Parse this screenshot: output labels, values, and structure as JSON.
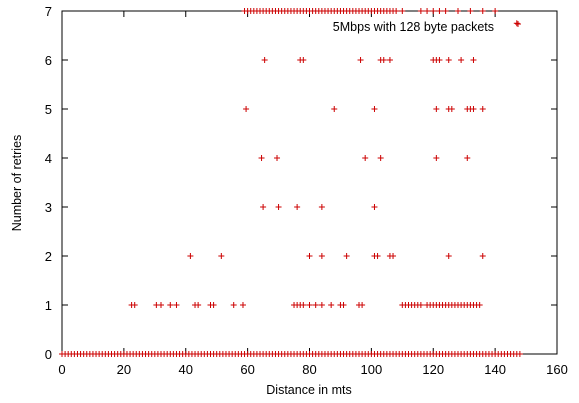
{
  "chart_data": {
    "type": "scatter",
    "xlabel": "Distance in mts",
    "ylabel": "Number of retries",
    "xlim": [
      0,
      160
    ],
    "ylim": [
      0,
      7
    ],
    "xticks": [
      0,
      20,
      40,
      60,
      80,
      100,
      120,
      140,
      160
    ],
    "yticks": [
      0,
      1,
      2,
      3,
      4,
      5,
      6,
      7
    ],
    "grid": false,
    "legend_position": "top-right",
    "marker": "plus",
    "series": [
      {
        "name": "5Mbps with 128 byte packets",
        "color": "#cc0000",
        "points": [
          [
            0,
            0
          ],
          [
            1,
            0
          ],
          [
            2,
            0
          ],
          [
            3,
            0
          ],
          [
            4,
            0
          ],
          [
            5,
            0
          ],
          [
            6,
            0
          ],
          [
            7,
            0
          ],
          [
            8,
            0
          ],
          [
            9,
            0
          ],
          [
            10,
            0
          ],
          [
            11,
            0
          ],
          [
            12,
            0
          ],
          [
            13,
            0
          ],
          [
            14,
            0
          ],
          [
            15,
            0
          ],
          [
            16,
            0
          ],
          [
            17,
            0
          ],
          [
            18,
            0
          ],
          [
            19,
            0
          ],
          [
            20,
            0
          ],
          [
            21,
            0
          ],
          [
            22,
            0
          ],
          [
            23,
            0
          ],
          [
            24,
            0
          ],
          [
            25,
            0
          ],
          [
            26,
            0
          ],
          [
            27,
            0
          ],
          [
            28,
            0
          ],
          [
            29,
            0
          ],
          [
            30,
            0
          ],
          [
            31,
            0
          ],
          [
            32,
            0
          ],
          [
            33,
            0
          ],
          [
            34,
            0
          ],
          [
            35,
            0
          ],
          [
            36,
            0
          ],
          [
            37,
            0
          ],
          [
            38,
            0
          ],
          [
            39,
            0
          ],
          [
            40,
            0
          ],
          [
            41,
            0
          ],
          [
            42,
            0
          ],
          [
            43,
            0
          ],
          [
            44,
            0
          ],
          [
            45,
            0
          ],
          [
            46,
            0
          ],
          [
            47,
            0
          ],
          [
            48,
            0
          ],
          [
            49,
            0
          ],
          [
            50,
            0
          ],
          [
            51,
            0
          ],
          [
            52,
            0
          ],
          [
            53,
            0
          ],
          [
            54,
            0
          ],
          [
            55,
            0
          ],
          [
            56,
            0
          ],
          [
            57,
            0
          ],
          [
            58,
            0
          ],
          [
            59,
            0
          ],
          [
            60,
            0
          ],
          [
            61,
            0
          ],
          [
            62,
            0
          ],
          [
            63,
            0
          ],
          [
            64,
            0
          ],
          [
            65,
            0
          ],
          [
            66,
            0
          ],
          [
            67,
            0
          ],
          [
            68,
            0
          ],
          [
            69,
            0
          ],
          [
            70,
            0
          ],
          [
            71,
            0
          ],
          [
            72,
            0
          ],
          [
            73,
            0
          ],
          [
            74,
            0
          ],
          [
            75,
            0
          ],
          [
            76,
            0
          ],
          [
            77,
            0
          ],
          [
            78,
            0
          ],
          [
            79,
            0
          ],
          [
            80,
            0
          ],
          [
            81,
            0
          ],
          [
            82,
            0
          ],
          [
            83,
            0
          ],
          [
            84,
            0
          ],
          [
            85,
            0
          ],
          [
            86,
            0
          ],
          [
            87,
            0
          ],
          [
            88,
            0
          ],
          [
            89,
            0
          ],
          [
            90,
            0
          ],
          [
            91,
            0
          ],
          [
            92,
            0
          ],
          [
            93,
            0
          ],
          [
            94,
            0
          ],
          [
            95,
            0
          ],
          [
            96,
            0
          ],
          [
            97,
            0
          ],
          [
            98,
            0
          ],
          [
            99,
            0
          ],
          [
            100,
            0
          ],
          [
            101,
            0
          ],
          [
            102,
            0
          ],
          [
            103,
            0
          ],
          [
            104,
            0
          ],
          [
            105,
            0
          ],
          [
            106,
            0
          ],
          [
            107,
            0
          ],
          [
            108,
            0
          ],
          [
            109,
            0
          ],
          [
            110,
            0
          ],
          [
            111,
            0
          ],
          [
            112,
            0
          ],
          [
            113,
            0
          ],
          [
            114,
            0
          ],
          [
            115,
            0
          ],
          [
            116,
            0
          ],
          [
            117,
            0
          ],
          [
            118,
            0
          ],
          [
            119,
            0
          ],
          [
            120,
            0
          ],
          [
            121,
            0
          ],
          [
            122,
            0
          ],
          [
            123,
            0
          ],
          [
            124,
            0
          ],
          [
            125,
            0
          ],
          [
            126,
            0
          ],
          [
            127,
            0
          ],
          [
            128,
            0
          ],
          [
            129,
            0
          ],
          [
            130,
            0
          ],
          [
            131,
            0
          ],
          [
            132,
            0
          ],
          [
            133,
            0
          ],
          [
            134,
            0
          ],
          [
            135,
            0
          ],
          [
            136,
            0
          ],
          [
            137,
            0
          ],
          [
            138,
            0
          ],
          [
            139,
            0
          ],
          [
            140,
            0
          ],
          [
            141,
            0
          ],
          [
            142,
            0
          ],
          [
            143,
            0
          ],
          [
            144,
            0
          ],
          [
            145,
            0
          ],
          [
            146,
            0
          ],
          [
            147,
            0
          ],
          [
            148,
            0
          ],
          [
            22.5,
            1
          ],
          [
            23.5,
            1
          ],
          [
            30.5,
            1
          ],
          [
            32,
            1
          ],
          [
            35,
            1
          ],
          [
            37,
            1
          ],
          [
            43,
            1
          ],
          [
            44,
            1
          ],
          [
            48,
            1
          ],
          [
            49,
            1
          ],
          [
            55.5,
            1
          ],
          [
            58.5,
            1
          ],
          [
            75,
            1
          ],
          [
            76,
            1
          ],
          [
            77,
            1
          ],
          [
            78,
            1
          ],
          [
            80,
            1
          ],
          [
            82,
            1
          ],
          [
            84,
            1
          ],
          [
            87,
            1
          ],
          [
            90,
            1
          ],
          [
            91,
            1
          ],
          [
            96,
            1
          ],
          [
            97,
            1
          ],
          [
            110,
            1
          ],
          [
            111,
            1
          ],
          [
            112,
            1
          ],
          [
            113,
            1
          ],
          [
            114,
            1
          ],
          [
            115,
            1
          ],
          [
            116,
            1
          ],
          [
            118,
            1
          ],
          [
            119,
            1
          ],
          [
            120,
            1
          ],
          [
            121,
            1
          ],
          [
            122,
            1
          ],
          [
            123,
            1
          ],
          [
            124,
            1
          ],
          [
            125,
            1
          ],
          [
            126,
            1
          ],
          [
            127,
            1
          ],
          [
            128,
            1
          ],
          [
            129,
            1
          ],
          [
            130,
            1
          ],
          [
            131,
            1
          ],
          [
            132,
            1
          ],
          [
            133,
            1
          ],
          [
            134,
            1
          ],
          [
            135,
            1
          ],
          [
            41.5,
            2
          ],
          [
            51.5,
            2
          ],
          [
            80,
            2
          ],
          [
            84,
            2
          ],
          [
            92,
            2
          ],
          [
            101,
            2
          ],
          [
            102,
            2
          ],
          [
            106,
            2
          ],
          [
            107,
            2
          ],
          [
            125,
            2
          ],
          [
            136,
            2
          ],
          [
            65,
            3
          ],
          [
            70,
            3
          ],
          [
            76,
            3
          ],
          [
            84,
            3
          ],
          [
            101,
            3
          ],
          [
            64.5,
            4
          ],
          [
            69.5,
            4
          ],
          [
            98,
            4
          ],
          [
            103,
            4
          ],
          [
            121,
            4
          ],
          [
            131,
            4
          ],
          [
            59.5,
            5
          ],
          [
            88,
            5
          ],
          [
            101,
            5
          ],
          [
            121,
            5
          ],
          [
            125,
            5
          ],
          [
            126,
            5
          ],
          [
            131,
            5
          ],
          [
            132,
            5
          ],
          [
            133,
            5
          ],
          [
            136,
            5
          ],
          [
            65.5,
            6
          ],
          [
            77,
            6
          ],
          [
            78,
            6
          ],
          [
            96.5,
            6
          ],
          [
            103,
            6
          ],
          [
            104,
            6
          ],
          [
            106,
            6
          ],
          [
            120,
            6
          ],
          [
            121,
            6
          ],
          [
            122,
            6
          ],
          [
            125,
            6
          ],
          [
            129,
            6
          ],
          [
            133,
            6
          ],
          [
            59,
            7
          ],
          [
            60,
            7
          ],
          [
            61,
            7
          ],
          [
            62,
            7
          ],
          [
            63,
            7
          ],
          [
            64,
            7
          ],
          [
            65,
            7
          ],
          [
            66,
            7
          ],
          [
            67,
            7
          ],
          [
            68,
            7
          ],
          [
            69,
            7
          ],
          [
            70,
            7
          ],
          [
            71,
            7
          ],
          [
            72,
            7
          ],
          [
            73,
            7
          ],
          [
            74,
            7
          ],
          [
            75,
            7
          ],
          [
            76,
            7
          ],
          [
            77,
            7
          ],
          [
            78,
            7
          ],
          [
            79,
            7
          ],
          [
            80,
            7
          ],
          [
            81,
            7
          ],
          [
            82,
            7
          ],
          [
            83,
            7
          ],
          [
            84,
            7
          ],
          [
            85,
            7
          ],
          [
            86,
            7
          ],
          [
            87,
            7
          ],
          [
            88,
            7
          ],
          [
            89,
            7
          ],
          [
            90,
            7
          ],
          [
            91,
            7
          ],
          [
            92,
            7
          ],
          [
            93,
            7
          ],
          [
            94,
            7
          ],
          [
            95,
            7
          ],
          [
            96,
            7
          ],
          [
            97,
            7
          ],
          [
            98,
            7
          ],
          [
            99,
            7
          ],
          [
            100,
            7
          ],
          [
            101,
            7
          ],
          [
            102,
            7
          ],
          [
            103,
            7
          ],
          [
            104,
            7
          ],
          [
            105,
            7
          ],
          [
            106,
            7
          ],
          [
            107,
            7
          ],
          [
            108,
            7
          ],
          [
            110,
            7
          ],
          [
            116,
            7
          ],
          [
            118,
            7
          ],
          [
            120,
            7
          ],
          [
            122,
            7
          ],
          [
            124,
            7
          ],
          [
            128,
            7
          ],
          [
            132,
            7
          ],
          [
            136,
            7
          ],
          [
            140,
            7
          ],
          [
            147,
            6.75
          ]
        ]
      }
    ]
  }
}
